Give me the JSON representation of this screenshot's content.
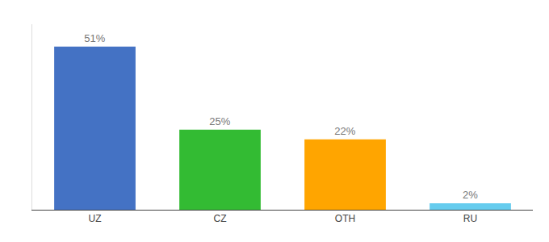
{
  "chart_data": {
    "type": "bar",
    "categories": [
      "UZ",
      "CZ",
      "OTH",
      "RU"
    ],
    "values": [
      51,
      25,
      22,
      2
    ],
    "value_labels": [
      "51%",
      "25%",
      "22%",
      "2%"
    ],
    "data_labels": true,
    "colors": [
      "#4472C4",
      "#33BB33",
      "#FFA500",
      "#66CCEE"
    ],
    "ylim": [
      0,
      58
    ],
    "yticks": [],
    "grid": false,
    "tick_labels": "x"
  }
}
